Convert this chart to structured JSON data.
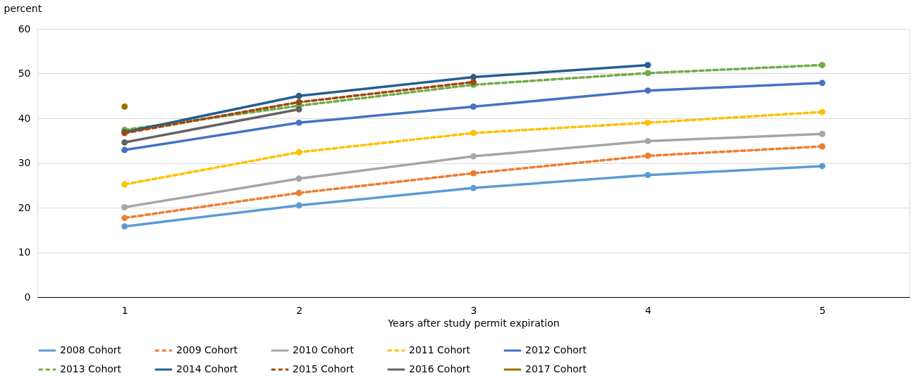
{
  "chart_data": {
    "type": "line",
    "ylabel": "percent",
    "xlabel": "Years after study permit expiration",
    "categories": [
      "1",
      "2",
      "3",
      "4",
      "5"
    ],
    "ylim": [
      0,
      60
    ],
    "yticks": [
      0,
      10,
      20,
      30,
      40,
      50,
      60
    ],
    "grid": "y",
    "legend": "bottom",
    "marker": "circle",
    "series": [
      {
        "name": "2008 Cohort",
        "color": "#5b9bd5",
        "line_style": "solid",
        "values": [
          15.8,
          20.5,
          24.4,
          27.3,
          29.3
        ]
      },
      {
        "name": "2009 Cohort",
        "color": "#ed7d31",
        "line_style": "dashed",
        "values": [
          17.7,
          23.3,
          27.7,
          31.6,
          33.7
        ]
      },
      {
        "name": "2010 Cohort",
        "color": "#a5a5a5",
        "line_style": "solid",
        "values": [
          20.1,
          26.5,
          31.5,
          34.9,
          36.5
        ]
      },
      {
        "name": "2011 Cohort",
        "color": "#ffc000",
        "line_style": "dashed",
        "values": [
          25.2,
          32.4,
          36.7,
          39.0,
          41.4
        ]
      },
      {
        "name": "2012 Cohort",
        "color": "#4472c4",
        "line_style": "solid",
        "values": [
          32.9,
          39.0,
          42.6,
          46.2,
          47.9
        ]
      },
      {
        "name": "2013 Cohort",
        "color": "#70ad47",
        "line_style": "dashed",
        "values": [
          37.4,
          42.8,
          47.5,
          50.1,
          51.9
        ]
      },
      {
        "name": "2014 Cohort",
        "color": "#255e91",
        "line_style": "solid",
        "values": [
          36.9,
          45.0,
          49.2,
          51.9,
          null
        ]
      },
      {
        "name": "2015 Cohort",
        "color": "#9e480e",
        "line_style": "dashed",
        "values": [
          36.7,
          43.6,
          48.1,
          null,
          null
        ]
      },
      {
        "name": "2016 Cohort",
        "color": "#636363",
        "line_style": "solid",
        "values": [
          34.6,
          42.0,
          null,
          null,
          null
        ]
      },
      {
        "name": "2017 Cohort",
        "color": "#997300",
        "line_style": "solid",
        "values": [
          42.6,
          null,
          null,
          null,
          null
        ]
      }
    ]
  }
}
